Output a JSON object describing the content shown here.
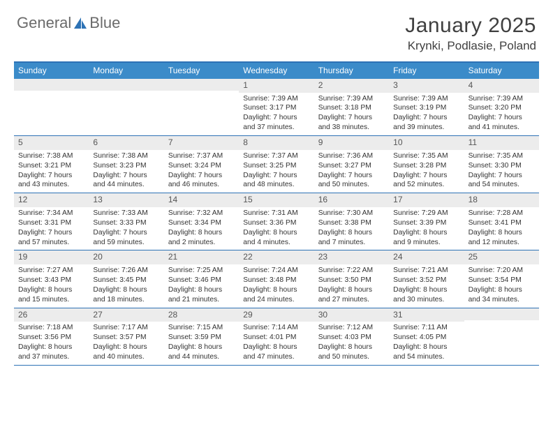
{
  "brand": {
    "word1": "General",
    "word2": "Blue"
  },
  "title": "January 2025",
  "location": "Krynki, Podlasie, Poland",
  "colors": {
    "accent": "#2d72b5",
    "header_bg": "#3b8bc9",
    "daynum_bg": "#ececec",
    "text": "#333333",
    "title_text": "#404040",
    "logo_gray": "#6b6b6b"
  },
  "layout": {
    "columns": 7,
    "rows": 5,
    "cell_font_size_pt": 8,
    "header_font_size_pt": 9
  },
  "day_names": [
    "Sunday",
    "Monday",
    "Tuesday",
    "Wednesday",
    "Thursday",
    "Friday",
    "Saturday"
  ],
  "weeks": [
    [
      null,
      null,
      null,
      {
        "n": "1",
        "sr": "7:39 AM",
        "ss": "3:17 PM",
        "dl": "7 hours and 37 minutes."
      },
      {
        "n": "2",
        "sr": "7:39 AM",
        "ss": "3:18 PM",
        "dl": "7 hours and 38 minutes."
      },
      {
        "n": "3",
        "sr": "7:39 AM",
        "ss": "3:19 PM",
        "dl": "7 hours and 39 minutes."
      },
      {
        "n": "4",
        "sr": "7:39 AM",
        "ss": "3:20 PM",
        "dl": "7 hours and 41 minutes."
      }
    ],
    [
      {
        "n": "5",
        "sr": "7:38 AM",
        "ss": "3:21 PM",
        "dl": "7 hours and 43 minutes."
      },
      {
        "n": "6",
        "sr": "7:38 AM",
        "ss": "3:23 PM",
        "dl": "7 hours and 44 minutes."
      },
      {
        "n": "7",
        "sr": "7:37 AM",
        "ss": "3:24 PM",
        "dl": "7 hours and 46 minutes."
      },
      {
        "n": "8",
        "sr": "7:37 AM",
        "ss": "3:25 PM",
        "dl": "7 hours and 48 minutes."
      },
      {
        "n": "9",
        "sr": "7:36 AM",
        "ss": "3:27 PM",
        "dl": "7 hours and 50 minutes."
      },
      {
        "n": "10",
        "sr": "7:35 AM",
        "ss": "3:28 PM",
        "dl": "7 hours and 52 minutes."
      },
      {
        "n": "11",
        "sr": "7:35 AM",
        "ss": "3:30 PM",
        "dl": "7 hours and 54 minutes."
      }
    ],
    [
      {
        "n": "12",
        "sr": "7:34 AM",
        "ss": "3:31 PM",
        "dl": "7 hours and 57 minutes."
      },
      {
        "n": "13",
        "sr": "7:33 AM",
        "ss": "3:33 PM",
        "dl": "7 hours and 59 minutes."
      },
      {
        "n": "14",
        "sr": "7:32 AM",
        "ss": "3:34 PM",
        "dl": "8 hours and 2 minutes."
      },
      {
        "n": "15",
        "sr": "7:31 AM",
        "ss": "3:36 PM",
        "dl": "8 hours and 4 minutes."
      },
      {
        "n": "16",
        "sr": "7:30 AM",
        "ss": "3:38 PM",
        "dl": "8 hours and 7 minutes."
      },
      {
        "n": "17",
        "sr": "7:29 AM",
        "ss": "3:39 PM",
        "dl": "8 hours and 9 minutes."
      },
      {
        "n": "18",
        "sr": "7:28 AM",
        "ss": "3:41 PM",
        "dl": "8 hours and 12 minutes."
      }
    ],
    [
      {
        "n": "19",
        "sr": "7:27 AM",
        "ss": "3:43 PM",
        "dl": "8 hours and 15 minutes."
      },
      {
        "n": "20",
        "sr": "7:26 AM",
        "ss": "3:45 PM",
        "dl": "8 hours and 18 minutes."
      },
      {
        "n": "21",
        "sr": "7:25 AM",
        "ss": "3:46 PM",
        "dl": "8 hours and 21 minutes."
      },
      {
        "n": "22",
        "sr": "7:24 AM",
        "ss": "3:48 PM",
        "dl": "8 hours and 24 minutes."
      },
      {
        "n": "23",
        "sr": "7:22 AM",
        "ss": "3:50 PM",
        "dl": "8 hours and 27 minutes."
      },
      {
        "n": "24",
        "sr": "7:21 AM",
        "ss": "3:52 PM",
        "dl": "8 hours and 30 minutes."
      },
      {
        "n": "25",
        "sr": "7:20 AM",
        "ss": "3:54 PM",
        "dl": "8 hours and 34 minutes."
      }
    ],
    [
      {
        "n": "26",
        "sr": "7:18 AM",
        "ss": "3:56 PM",
        "dl": "8 hours and 37 minutes."
      },
      {
        "n": "27",
        "sr": "7:17 AM",
        "ss": "3:57 PM",
        "dl": "8 hours and 40 minutes."
      },
      {
        "n": "28",
        "sr": "7:15 AM",
        "ss": "3:59 PM",
        "dl": "8 hours and 44 minutes."
      },
      {
        "n": "29",
        "sr": "7:14 AM",
        "ss": "4:01 PM",
        "dl": "8 hours and 47 minutes."
      },
      {
        "n": "30",
        "sr": "7:12 AM",
        "ss": "4:03 PM",
        "dl": "8 hours and 50 minutes."
      },
      {
        "n": "31",
        "sr": "7:11 AM",
        "ss": "4:05 PM",
        "dl": "8 hours and 54 minutes."
      },
      null
    ]
  ],
  "labels": {
    "sunrise": "Sunrise:",
    "sunset": "Sunset:",
    "daylight": "Daylight:"
  }
}
